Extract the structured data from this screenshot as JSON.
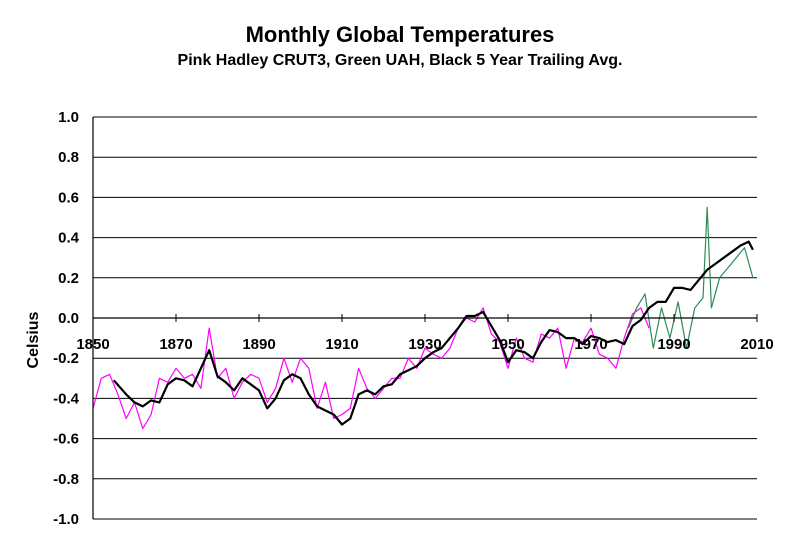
{
  "chart_data": {
    "type": "line",
    "title": "Monthly Global Temperatures",
    "subtitle": "Pink Hadley CRUT3, Green UAH, Black 5 Year Trailing Avg.",
    "ylabel": "Celsius",
    "xlim": [
      1850,
      2010
    ],
    "ylim": [
      -1.0,
      1.0
    ],
    "x_ticks": [
      "1850",
      "1870",
      "1890",
      "1910",
      "1930",
      "1950",
      "1970",
      "1990",
      "2010"
    ],
    "y_ticks": [
      "1.0",
      "0.8",
      "0.6",
      "0.4",
      "0.2",
      "0.0",
      "-0.2",
      "-0.4",
      "-0.6",
      "-0.8",
      "-1.0"
    ],
    "grid": true,
    "colors": {
      "hadley": "#ff00ff",
      "uah": "#2e8b57",
      "avg": "#000000"
    },
    "series": [
      {
        "name": "Hadley CRUT3",
        "color": "#ff00ff",
        "x": [
          1850,
          1852,
          1854,
          1856,
          1858,
          1860,
          1862,
          1864,
          1866,
          1868,
          1870,
          1872,
          1874,
          1876,
          1878,
          1880,
          1882,
          1884,
          1886,
          1888,
          1890,
          1892,
          1894,
          1896,
          1898,
          1900,
          1902,
          1904,
          1906,
          1908,
          1910,
          1912,
          1914,
          1916,
          1918,
          1920,
          1922,
          1924,
          1926,
          1928,
          1930,
          1932,
          1934,
          1936,
          1938,
          1940,
          1942,
          1944,
          1946,
          1948,
          1950,
          1952,
          1954,
          1956,
          1958,
          1960,
          1962,
          1964,
          1966,
          1968,
          1970,
          1972,
          1974,
          1976,
          1978,
          1980,
          1982,
          1984
        ],
        "values": [
          -0.45,
          -0.3,
          -0.28,
          -0.38,
          -0.5,
          -0.42,
          -0.55,
          -0.48,
          -0.3,
          -0.32,
          -0.25,
          -0.3,
          -0.28,
          -0.35,
          -0.05,
          -0.3,
          -0.25,
          -0.4,
          -0.32,
          -0.28,
          -0.3,
          -0.42,
          -0.35,
          -0.2,
          -0.32,
          -0.2,
          -0.25,
          -0.45,
          -0.32,
          -0.5,
          -0.48,
          -0.45,
          -0.25,
          -0.35,
          -0.4,
          -0.35,
          -0.3,
          -0.3,
          -0.2,
          -0.25,
          -0.15,
          -0.18,
          -0.2,
          -0.15,
          -0.05,
          0.0,
          -0.02,
          0.05,
          -0.08,
          -0.12,
          -0.25,
          -0.1,
          -0.2,
          -0.22,
          -0.08,
          -0.1,
          -0.05,
          -0.25,
          -0.1,
          -0.12,
          -0.05,
          -0.18,
          -0.2,
          -0.25,
          -0.1,
          0.02,
          0.05,
          -0.05
        ]
      },
      {
        "name": "UAH",
        "color": "#2e8b57",
        "x": [
          1979,
          1981,
          1983,
          1985,
          1987,
          1989,
          1991,
          1993,
          1995,
          1997,
          1998,
          1999,
          2001,
          2003,
          2005,
          2007,
          2009
        ],
        "values": [
          -0.05,
          0.05,
          0.12,
          -0.15,
          0.05,
          -0.1,
          0.08,
          -0.15,
          0.05,
          0.1,
          0.55,
          0.05,
          0.2,
          0.25,
          0.3,
          0.35,
          0.2
        ]
      },
      {
        "name": "5 Year Trailing Avg.",
        "color": "#000000",
        "x": [
          1855,
          1858,
          1860,
          1862,
          1864,
          1866,
          1868,
          1870,
          1872,
          1874,
          1876,
          1878,
          1880,
          1882,
          1884,
          1886,
          1888,
          1890,
          1892,
          1894,
          1896,
          1898,
          1900,
          1902,
          1904,
          1906,
          1908,
          1910,
          1912,
          1914,
          1916,
          1918,
          1920,
          1922,
          1924,
          1926,
          1928,
          1930,
          1932,
          1934,
          1936,
          1938,
          1940,
          1942,
          1944,
          1946,
          1948,
          1950,
          1952,
          1954,
          1956,
          1958,
          1960,
          1962,
          1964,
          1966,
          1968,
          1970,
          1972,
          1974,
          1976,
          1978,
          1980,
          1982,
          1984,
          1986,
          1988,
          1990,
          1992,
          1994,
          1996,
          1998,
          2000,
          2002,
          2004,
          2006,
          2008,
          2009
        ],
        "values": [
          -0.31,
          -0.38,
          -0.42,
          -0.44,
          -0.41,
          -0.42,
          -0.33,
          -0.3,
          -0.31,
          -0.34,
          -0.25,
          -0.16,
          -0.29,
          -0.32,
          -0.36,
          -0.3,
          -0.33,
          -0.36,
          -0.45,
          -0.4,
          -0.31,
          -0.28,
          -0.3,
          -0.38,
          -0.44,
          -0.46,
          -0.48,
          -0.53,
          -0.5,
          -0.38,
          -0.36,
          -0.38,
          -0.34,
          -0.33,
          -0.28,
          -0.26,
          -0.24,
          -0.2,
          -0.17,
          -0.15,
          -0.1,
          -0.05,
          0.01,
          0.01,
          0.03,
          -0.04,
          -0.11,
          -0.22,
          -0.16,
          -0.17,
          -0.2,
          -0.12,
          -0.06,
          -0.07,
          -0.1,
          -0.1,
          -0.13,
          -0.09,
          -0.1,
          -0.12,
          -0.11,
          -0.13,
          -0.04,
          -0.01,
          0.05,
          0.08,
          0.08,
          0.15,
          0.15,
          0.14,
          0.19,
          0.24,
          0.27,
          0.3,
          0.33,
          0.36,
          0.38,
          0.34
        ]
      }
    ]
  }
}
